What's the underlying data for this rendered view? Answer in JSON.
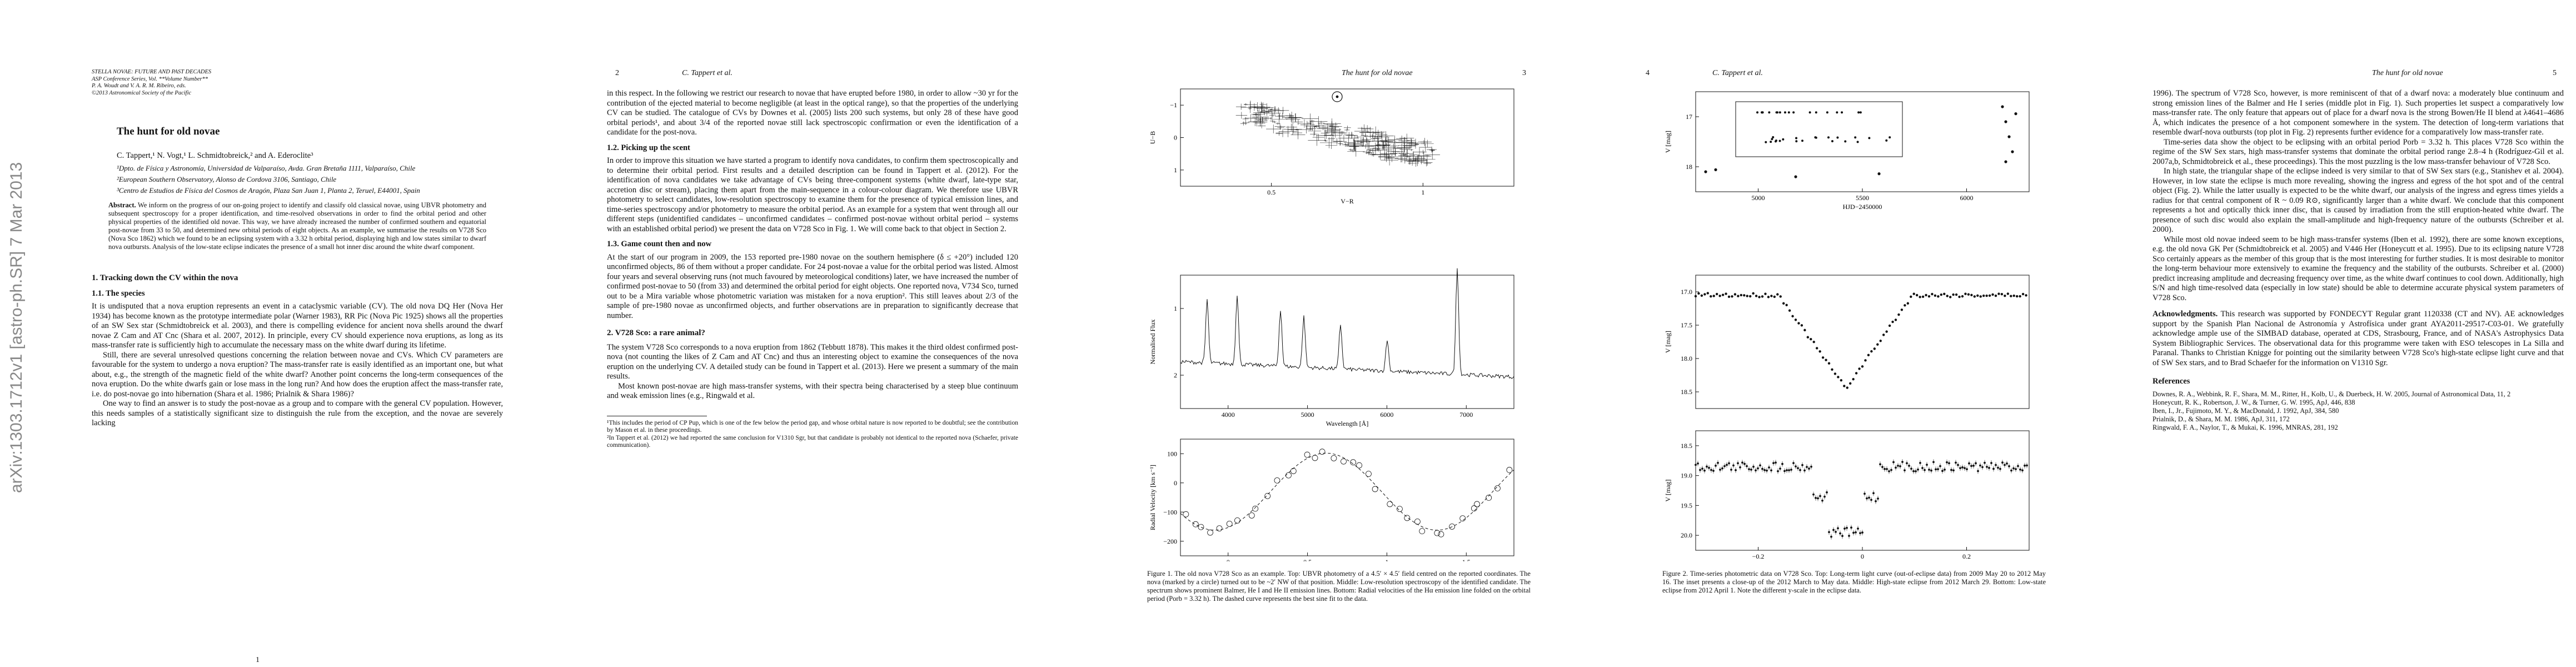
{
  "arxiv_stamp": "arXiv:1303.1712v1  [astro-ph.SR]  7 Mar 2013",
  "pages": [
    {
      "header": [
        "STELLA NOVAE: FUTURE AND PAST DECADES",
        "ASP Conference Series, Vol. **Volume Number**",
        "P. A. Woudt and V. A. R. M. Ribeiro, eds.",
        "©2013 Astronomical Society of the Pacific"
      ],
      "title": "The hunt for old novae",
      "authors": "C. Tappert,¹ N. Vogt,¹ L. Schmidtobreick,² and A. Ederoclite³",
      "affiliations": [
        "¹Dpto. de Física y Astronomía, Universidad de Valparaíso, Avda. Gran Bretaña 1111, Valparaíso, Chile",
        "²European Southern Observatory, Alonso de Cordova 3106, Santiago, Chile",
        "³Centro de Estudios de Física del Cosmos de Aragón, Plaza San Juan 1, Planta 2, Teruel, E44001, Spain"
      ],
      "abstract": {
        "label": "Abstract.",
        "text": "We inform on the progress of our on-going project to identify and classify old classical novae, using UBVR photometry and subsequent spectroscopy for a proper identification, and time-resolved observations in order to find the orbital period and other physical properties of the identified old novae. This way, we have already increased the number of confirmed southern and equatorial post-novae from 33 to 50, and determined new orbital periods of eight objects. As an example, we summarise the results on V728 Sco (Nova Sco 1862) which we found to be an eclipsing system with a 3.32 h orbital period, displaying high and low states similar to dwarf nova outbursts. Analysis of the low-state eclipse indicates the presence of a small hot inner disc around the white dwarf component."
      },
      "section": "1.   Tracking down the CV within the nova",
      "subsection": "1.1.   The species",
      "paragraphs": [
        "It is undisputed that a nova eruption represents an event in a cataclysmic variable (CV). The old nova DQ Her (Nova Her 1934) has become known as the prototype intermediate polar (Warner 1983), RR Pic (Nova Pic 1925) shows all the properties of an SW Sex star (Schmidtobreick et al. 2003), and there is compelling evidence for ancient nova shells around the dwarf novae Z Cam and AT Cnc (Shara et al. 2007, 2012). In principle, every CV should experience nova eruptions, as long as its mass-transfer rate is sufficiently high to accumulate the necessary mass on the white dwarf during its lifetime.",
        "Still, there are several unresolved questions concerning the relation between novae and CVs. Which CV parameters are favourable for the system to undergo a nova eruption? The mass-transfer rate is easily identified as an important one, but what about, e.g., the strength of the magnetic field of the white dwarf? Another point concerns the long-term consequences of the nova eruption. Do the white dwarfs gain or lose mass in the long run? And how does the eruption affect the mass-transfer rate, i.e. do post-novae go into hibernation (Shara et al. 1986; Prialnik & Shara 1986)?",
        "One way to find an answer is to study the post-novae as a group and to compare with the general CV population. However, this needs samples of a statistically significant size to distinguish the rule from the exception, and the novae are severely lacking"
      ],
      "page_number": "1"
    },
    {
      "page_number": "2",
      "running_head": "C. Tappert et al.",
      "paragraphs_a": [
        "in this respect. In the following we restrict our research to novae that have erupted before 1980, in order to allow ~30 yr for the contribution of the ejected material to become negligible (at least in the optical range), so that the properties of the underlying CV can be studied. The catalogue of CVs by Downes et al. (2005) lists 200 such systems, but only 28 of these have good orbital periods¹, and about 3/4 of the reported novae still lack spectroscopic confirmation or even the identification of a candidate for the post-nova."
      ],
      "subsection_a": "1.2.   Picking up the scent",
      "paragraphs_b": [
        "In order to improve this situation we have started a program to identify nova candidates, to confirm them spectroscopically and to determine their orbital period. First results and a detailed description can be found in Tappert et al. (2012). For the identification of nova candidates we take advantage of CVs being three-component systems (white dwarf, late-type star, accretion disc or stream), placing them apart from the main-sequence in a colour-colour diagram. We therefore use UBVR photometry to select candidates, low-resolution spectroscopy to examine them for the presence of typical emission lines, and time-series spectroscopy and/or photometry to measure the orbital period. As an example for a system that went through all our different steps (unidentified candidates – unconfirmed candidates – confirmed post-novae without orbital period – systems with an established orbital period) we present the data on V728 Sco in Fig. 1. We will come back to that object in Section 2."
      ],
      "subsection_b": "1.3.   Game count then and now",
      "paragraphs_c": [
        "At the start of our program in 2009, the 153 reported pre-1980 novae on the southern hemisphere (δ ≤ +20°) included 120 unconfirmed objects, 86 of them without a proper candidate. For 24 post-novae a value for the orbital period was listed. Almost four years and several observing runs (not much favoured by meteorological conditions) later, we have increased the number of confirmed post-novae to 50 (from 33) and determined the orbital period for eight objects. One reported nova, V734 Sco, turned out to be a Mira variable whose photometric variation was mistaken for a nova eruption². This still leaves about 2/3 of the sample of pre-1980 novae as unconfirmed objects, and further observations are in preparation to significantly decrease that number."
      ],
      "section": "2.   V728 Sco: a rare animal?",
      "paragraphs_d": [
        "The system V728 Sco corresponds to a nova eruption from 1862 (Tebbutt 1878). This makes it the third oldest confirmed post-nova (not counting the likes of Z Cam and AT Cnc) and thus an interesting object to examine the consequences of the nova eruption on the underlying CV. A detailed study can be found in Tappert et al. (2013). Here we present a summary of the main results.",
        "Most known post-novae are high mass-transfer systems, with their spectra being characterised by a steep blue continuum and weak emission lines (e.g., Ringwald et al."
      ],
      "footnotes": [
        "¹This includes the period of CP Pup, which is one of the few below the period gap, and whose orbital nature is now reported to be doubtful; see the contribution by Mason et al. in these proceedings.",
        "²In Tappert et al. (2012) we had reported the same conclusion for V1310 Sgr, but that candidate is probably not identical to the reported nova (Schaefer, private communication)."
      ]
    },
    {
      "running_head": "The hunt for old novae",
      "page_number": "3",
      "figure": {
        "panels": [
          {
            "ylabel": "U−B",
            "xlabel": "V−R",
            "xticks": [
              "0.5",
              "1"
            ],
            "yticks": [
              "−1",
              "0",
              "1"
            ]
          },
          {
            "ylabel": "Normalised Flux",
            "xlabel": "Wavelength [Å]",
            "xticks": [
              "4000",
              "5000",
              "6000",
              "7000"
            ],
            "yticks": [
              "1",
              "2"
            ]
          },
          {
            "ylabel": "Radial Velocity [km s⁻¹]",
            "xlabel": "Phase [P = 3.32 h]",
            "xticks": [
              "0",
              "0.5",
              "1",
              "1.5"
            ],
            "yticks": [
              "100",
              "0",
              "−100",
              "−200"
            ]
          }
        ],
        "caption": {
          "label": "Figure 1.",
          "text": "The old nova V728 Sco as an example. Top: UBVR photometry of a 4.5′ × 4.5′ field centred on the reported coordinates. The nova (marked by a circle) turned out to be ~2′ NW of that position. Middle: Low-resolution spectroscopy of the identified candidate. The spectrum shows prominent Balmer, He I and He II emission lines. Bottom: Radial velocities of the Hα emission line folded on the orbital period (Porb = 3.32 h). The dashed curve represents the best sine fit to the data."
        }
      }
    },
    {
      "page_number": "4",
      "running_head": "C. Tappert et al.",
      "figure": {
        "panels": [
          {
            "ylabel": "V [mag]",
            "xlabel": "HJD−2450000",
            "xticks": [
              "5000",
              "5500",
              "6000"
            ],
            "yticks": [
              "17",
              "18"
            ]
          },
          {
            "ylabel": "V [mag]",
            "xlabel": "",
            "xticks": [],
            "yticks": [
              "17.0",
              "17.5",
              "18.0",
              "18.5"
            ]
          },
          {
            "ylabel": "V [mag]",
            "xlabel": "Orbital Phase",
            "xticks": [
              "−0.2",
              "0",
              "0.2"
            ],
            "yticks": [
              "18.5",
              "19.0",
              "19.5",
              "20.0"
            ]
          }
        ],
        "caption": {
          "label": "Figure 2.",
          "text": "Time-series photometric data on V728 Sco. Top: Long-term light curve (out-of-eclipse data) from 2009 May 20 to 2012 May 16. The inset presents a close-up of the 2012 March to May data. Middle: High-state eclipse from 2012 March 29. Bottom: Low-state eclipse from 2012 April 1. Note the different y-scale in the eclipse data."
        }
      }
    },
    {
      "running_head": "The hunt for old novae",
      "page_number": "5",
      "paragraphs": [
        "1996). The spectrum of V728 Sco, however, is more reminiscent of that of a dwarf nova: a moderately blue continuum and strong emission lines of the Balmer and He I series (middle plot in Fig. 1). Such properties let suspect a comparatively low mass-transfer rate. The only feature that appears out of place for a dwarf nova is the strong Bowen/He II blend at λ4641–4686 Å, which indicates the presence of a hot component somewhere in the system. The detection of long-term variations that resemble dwarf-nova outbursts (top plot in Fig. 2) represents further evidence for a comparatively low mass-transfer rate.",
        "Time-series data show the object to be eclipsing with an orbital period Porb = 3.32 h. This places V728 Sco within the regime of the SW Sex stars, high mass-transfer systems that dominate the orbital period range 2.8–4 h (Rodríguez-Gil et al. 2007a,b, Schmidtobreick et al., these proceedings). This the most puzzling is the low mass-transfer behaviour of V728 Sco.",
        "In high state, the triangular shape of the eclipse indeed is very similar to that of SW Sex stars (e.g., Stanishev et al. 2004). However, in low state the eclipse is much more revealing, showing the ingress and egress of the hot spot and of the central object (Fig. 2). While the latter usually is expected to be the white dwarf, our analysis of the ingress and egress times yields a radius for that central component of R ~ 0.09 R⊙, significantly larger than a white dwarf. We conclude that this component represents a hot and optically thick inner disc, that is caused by irradiation from the still eruption-heated white dwarf. The presence of such disc would also explain the small-amplitude and high-frequency nature of the outbursts (Schreiber et al. 2000).",
        "While most old novae indeed seem to be high mass-transfer systems (Iben et al. 1992), there are some known exceptions, e.g. the old nova GK Per (Schmidtobreick et al. 2005) and V446 Her (Honeycutt et al. 1995). Due to its eclipsing nature V728 Sco certainly appears as the member of this group that is the most interesting for further studies. It is most desirable to monitor the long-term behaviour more extensively to examine the frequency and the stability of the outbursts. Schreiber et al. (2000) predict increasing amplitude and decreasing frequency over time, as the white dwarf continues to cool down. Additionally, high S/N and high time-resolved data (especially in low state) should be able to determine accurate physical system parameters of V728 Sco."
      ],
      "acknowledgments": {
        "label": "Acknowledgments.",
        "text": "This research was supported by FONDECYT Regular grant 1120338 (CT and NV). AE acknowledges support by the Spanish Plan Nacional de Astronomía y Astrofísica under grant AYA2011-29517-C03-01. We gratefully acknowledge ample use of the SIMBAD database, operated at CDS, Strasbourg, France, and of NASA's Astrophysics Data System Bibliographic Services. The observational data for this programme were taken with ESO telescopes in La Silla and Paranal. Thanks to Christian Knigge for pointing out the similarity between V728 Sco's high-state eclipse light curve and that of SW Sex stars, and to Brad Schaefer for the information on V1310 Sgr."
      },
      "references_title": "References",
      "references": [
        "Downes, R. A., Webbink, R. F., Shara, M. M., Ritter, H., Kolb, U., & Duerbeck, H. W. 2005, Journal of Astronomical Data, 11, 2",
        "Honeycutt, R. K., Robertson, J. W., & Turner, G. W. 1995, ApJ, 446, 838",
        "Iben, I., Jr., Fujimoto, M. Y., & MacDonald, J. 1992, ApJ, 384, 580",
        "Prialnik, D., & Shara, M. M. 1986, ApJ, 311, 172",
        "Ringwald, F. A., Naylor, T., & Mukai, K. 1996, MNRAS, 281, 192"
      ]
    }
  ]
}
